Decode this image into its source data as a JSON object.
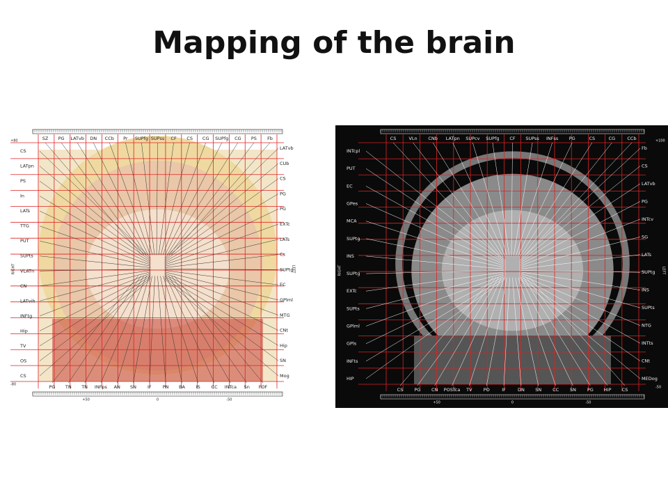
{
  "title": "Mapping of the brain",
  "panels": [
    {
      "top_labels": [
        "SZ",
        "PG",
        "LATvb",
        "DN",
        "CCb",
        "Pr",
        "SUPfg",
        "SUPss",
        "CF",
        "CS",
        "CG",
        "SUPfg",
        "CG",
        "PS",
        "Fb"
      ],
      "left_labels": [
        "CS",
        "LATpn",
        "PS",
        "In",
        "LATs",
        "TTG",
        "PUT",
        "SUPts",
        "VLATn",
        "CN",
        "LATvih",
        "INFtg",
        "Hip",
        "TV",
        "OS",
        "CS"
      ],
      "right_labels": [
        "LATvb",
        "CUb",
        "CS",
        "PG",
        "PG",
        "EXTc",
        "LATs",
        "Cs",
        "SUPtg",
        "EC",
        "GPlml",
        "MTG",
        "CNt",
        "Hip",
        "SN",
        "Mog"
      ],
      "bottom_labels": [
        "PG",
        "TN",
        "TN",
        "INFps",
        "AN",
        "SN",
        "IF",
        "PN",
        "BA",
        "IS",
        "CC",
        "INTca",
        "Sn",
        "FOF"
      ],
      "corner_top": "+80",
      "corner_bottom": "-80",
      "side_left": "RIGHT",
      "side_right": "LEFT",
      "scale_bottom": [
        "+50",
        "0",
        "-50"
      ]
    },
    {
      "top_labels": [
        "CS",
        "VLn",
        "CNb",
        "LATpn",
        "SUPcv",
        "SUPfg",
        "CF",
        "SUPss",
        "INFss",
        "PG",
        "CS",
        "CG",
        "CCb"
      ],
      "left_labels": [
        "INTcpl",
        "PUT",
        "EC",
        "GPes",
        "MCA",
        "SUPtg",
        "INS",
        "SUPtg",
        "EXTc",
        "SUPts",
        "GPlml",
        "GPls",
        "INFts",
        "HIP"
      ],
      "right_labels": [
        "Fb",
        "CS",
        "LATvb",
        "PG",
        "INTcv",
        "SG",
        "LATs",
        "SUPtg",
        "INS",
        "SUPts",
        "NTG",
        "INTts",
        "CNt",
        "MEDog"
      ],
      "bottom_labels": [
        "CS",
        "PG",
        "CN",
        "POSTca",
        "TV",
        "PO",
        "IF",
        "DN",
        "SN",
        "CC",
        "SN",
        "PG",
        "HIP",
        "CS"
      ],
      "corner_top": "+100",
      "corner_bottom": "-50",
      "side_left": "RIGHT",
      "side_right": "LEFT",
      "scale_bottom": [
        "+50",
        "0",
        "-50"
      ]
    }
  ]
}
